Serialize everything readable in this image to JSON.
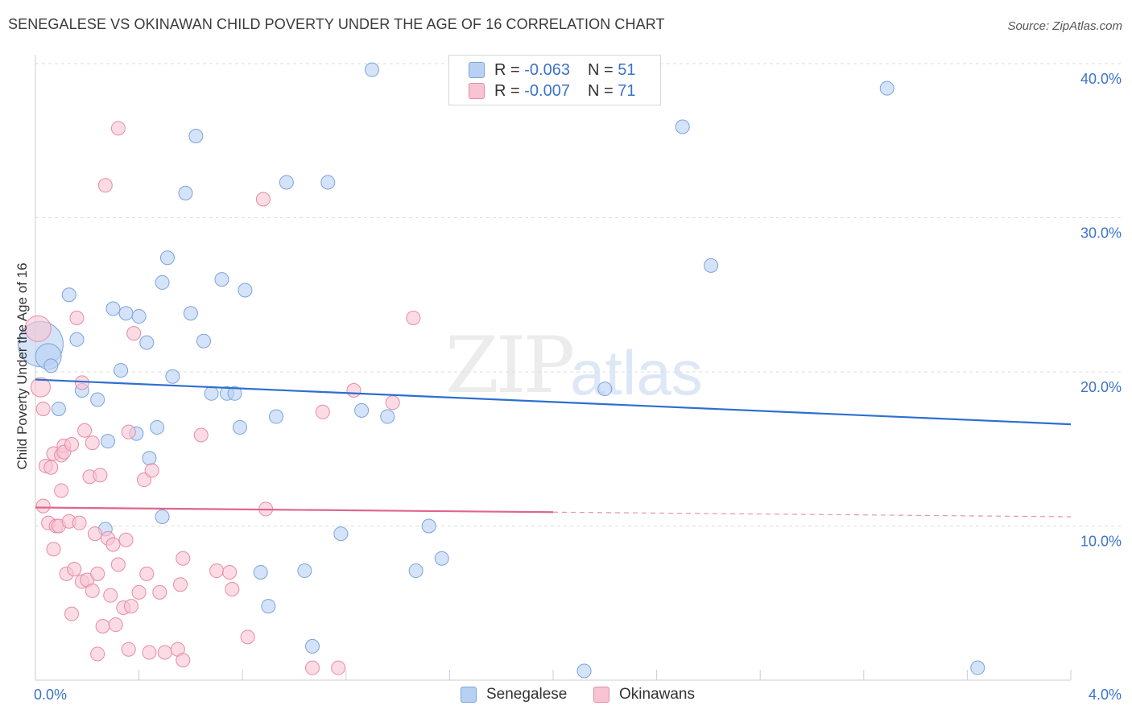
{
  "title": "SENEGALESE VS OKINAWAN CHILD POVERTY UNDER THE AGE OF 16 CORRELATION CHART",
  "source": "Source: ZipAtlas.com",
  "watermark": {
    "zip": "ZIP",
    "atlas": "atlas"
  },
  "legend_top": [
    {
      "r_label": "R =",
      "r_value": "-0.063",
      "n_label": "N =",
      "n_value": "51",
      "fill": "#b8d1f3",
      "stroke": "#7aa3df"
    },
    {
      "r_label": "R =",
      "r_value": "-0.007",
      "n_label": "N =",
      "n_value": "71",
      "fill": "#f8c4d3",
      "stroke": "#e88aa6"
    }
  ],
  "legend_bottom": [
    {
      "label": "Senegalese",
      "fill": "#b8d1f3",
      "stroke": "#7aa3df"
    },
    {
      "label": "Okinawans",
      "fill": "#f8c4d3",
      "stroke": "#e88aa6"
    }
  ],
  "chart_data": {
    "type": "scatter",
    "title": "SENEGALESE VS OKINAWAN CHILD POVERTY UNDER THE AGE OF 16 CORRELATION CHART",
    "xlabel": "",
    "ylabel": "Child Poverty Under the Age of 16",
    "xlim": [
      0,
      4
    ],
    "ylim": [
      0,
      40
    ],
    "x_tick_labels": [
      {
        "value": 0,
        "label": "0.0%"
      },
      {
        "value": 4,
        "label": "4.0%"
      }
    ],
    "y_tick_labels": [
      {
        "value": 10,
        "label": "10.0%"
      },
      {
        "value": 20,
        "label": "20.0%"
      },
      {
        "value": 30,
        "label": "30.0%"
      },
      {
        "value": 40,
        "label": "40.0%"
      }
    ],
    "grid": true,
    "series": [
      {
        "name": "Senegalese",
        "color": "#7aa3df",
        "fill": "#b8d1f3",
        "trend": {
          "x": [
            0,
            4
          ],
          "y": [
            19.5,
            16.6
          ],
          "color": "#2d6fcf",
          "dashed_from": null
        },
        "points": [
          {
            "x": 0.02,
            "y": 21.8,
            "s": 28
          },
          {
            "x": 0.05,
            "y": 21.0,
            "s": 16
          },
          {
            "x": 0.06,
            "y": 20.4,
            "s": 10
          },
          {
            "x": 0.09,
            "y": 17.6,
            "s": 10
          },
          {
            "x": 0.13,
            "y": 25.0,
            "s": 10
          },
          {
            "x": 0.16,
            "y": 22.1,
            "s": 10
          },
          {
            "x": 0.18,
            "y": 18.8,
            "s": 10
          },
          {
            "x": 0.24,
            "y": 18.2,
            "s": 10
          },
          {
            "x": 0.28,
            "y": 15.5,
            "s": 10
          },
          {
            "x": 0.3,
            "y": 24.1,
            "s": 10
          },
          {
            "x": 0.33,
            "y": 20.1,
            "s": 10
          },
          {
            "x": 0.35,
            "y": 23.8,
            "s": 10
          },
          {
            "x": 0.39,
            "y": 16.0,
            "s": 10
          },
          {
            "x": 0.4,
            "y": 23.6,
            "s": 10
          },
          {
            "x": 0.43,
            "y": 21.9,
            "s": 10
          },
          {
            "x": 0.47,
            "y": 16.4,
            "s": 10
          },
          {
            "x": 0.49,
            "y": 25.8,
            "s": 10
          },
          {
            "x": 0.51,
            "y": 27.4,
            "s": 10
          },
          {
            "x": 0.53,
            "y": 19.7,
            "s": 10
          },
          {
            "x": 0.58,
            "y": 31.6,
            "s": 10
          },
          {
            "x": 0.6,
            "y": 23.8,
            "s": 10
          },
          {
            "x": 0.62,
            "y": 35.3,
            "s": 10
          },
          {
            "x": 0.65,
            "y": 22.0,
            "s": 10
          },
          {
            "x": 0.68,
            "y": 18.6,
            "s": 10
          },
          {
            "x": 0.72,
            "y": 26.0,
            "s": 10
          },
          {
            "x": 0.74,
            "y": 18.6,
            "s": 10
          },
          {
            "x": 0.77,
            "y": 18.6,
            "s": 10
          },
          {
            "x": 0.79,
            "y": 16.4,
            "s": 10
          },
          {
            "x": 0.81,
            "y": 25.3,
            "s": 10
          },
          {
            "x": 0.87,
            "y": 7.0,
            "s": 10
          },
          {
            "x": 0.9,
            "y": 4.8,
            "s": 10
          },
          {
            "x": 0.93,
            "y": 17.1,
            "s": 10
          },
          {
            "x": 0.97,
            "y": 32.3,
            "s": 10
          },
          {
            "x": 1.04,
            "y": 7.1,
            "s": 10
          },
          {
            "x": 1.07,
            "y": 2.2,
            "s": 10
          },
          {
            "x": 1.13,
            "y": 32.3,
            "s": 10
          },
          {
            "x": 1.18,
            "y": 9.5,
            "s": 10
          },
          {
            "x": 1.26,
            "y": 17.5,
            "s": 10
          },
          {
            "x": 1.3,
            "y": 39.6,
            "s": 10
          },
          {
            "x": 1.36,
            "y": 17.1,
            "s": 10
          },
          {
            "x": 1.47,
            "y": 7.1,
            "s": 10
          },
          {
            "x": 1.52,
            "y": 10.0,
            "s": 10
          },
          {
            "x": 1.57,
            "y": 7.9,
            "s": 10
          },
          {
            "x": 0.27,
            "y": 9.8,
            "s": 10
          },
          {
            "x": 0.44,
            "y": 14.4,
            "s": 10
          },
          {
            "x": 0.49,
            "y": 10.6,
            "s": 10
          },
          {
            "x": 2.12,
            "y": 0.6,
            "s": 10
          },
          {
            "x": 2.2,
            "y": 18.9,
            "s": 10
          },
          {
            "x": 2.5,
            "y": 35.9,
            "s": 10
          },
          {
            "x": 2.61,
            "y": 26.9,
            "s": 10
          },
          {
            "x": 3.29,
            "y": 38.4,
            "s": 10
          },
          {
            "x": 3.64,
            "y": 0.8,
            "s": 10
          }
        ]
      },
      {
        "name": "Okinawans",
        "color": "#e88aa6",
        "fill": "#f8c4d3",
        "trend": {
          "x": [
            0,
            2.0,
            4
          ],
          "y": [
            11.2,
            10.9,
            10.6
          ],
          "color": "#e0648f",
          "dashed_from": 2.0
        },
        "points": [
          {
            "x": 0.01,
            "y": 22.8,
            "s": 16
          },
          {
            "x": 0.02,
            "y": 19.0,
            "s": 12
          },
          {
            "x": 0.03,
            "y": 17.6,
            "s": 10
          },
          {
            "x": 0.03,
            "y": 11.3,
            "s": 10
          },
          {
            "x": 0.04,
            "y": 13.9,
            "s": 10
          },
          {
            "x": 0.05,
            "y": 10.2,
            "s": 10
          },
          {
            "x": 0.06,
            "y": 13.8,
            "s": 10
          },
          {
            "x": 0.07,
            "y": 14.7,
            "s": 10
          },
          {
            "x": 0.07,
            "y": 8.5,
            "s": 10
          },
          {
            "x": 0.08,
            "y": 10.0,
            "s": 10
          },
          {
            "x": 0.09,
            "y": 10.0,
            "s": 10
          },
          {
            "x": 0.1,
            "y": 14.6,
            "s": 10
          },
          {
            "x": 0.1,
            "y": 12.3,
            "s": 10
          },
          {
            "x": 0.11,
            "y": 15.2,
            "s": 10
          },
          {
            "x": 0.11,
            "y": 14.8,
            "s": 10
          },
          {
            "x": 0.12,
            "y": 6.9,
            "s": 10
          },
          {
            "x": 0.13,
            "y": 10.3,
            "s": 10
          },
          {
            "x": 0.14,
            "y": 15.3,
            "s": 10
          },
          {
            "x": 0.14,
            "y": 4.3,
            "s": 10
          },
          {
            "x": 0.15,
            "y": 7.2,
            "s": 10
          },
          {
            "x": 0.16,
            "y": 23.5,
            "s": 10
          },
          {
            "x": 0.17,
            "y": 10.2,
            "s": 10
          },
          {
            "x": 0.18,
            "y": 6.4,
            "s": 10
          },
          {
            "x": 0.18,
            "y": 19.3,
            "s": 10
          },
          {
            "x": 0.19,
            "y": 16.2,
            "s": 10
          },
          {
            "x": 0.2,
            "y": 6.5,
            "s": 10
          },
          {
            "x": 0.21,
            "y": 13.2,
            "s": 10
          },
          {
            "x": 0.22,
            "y": 15.4,
            "s": 10
          },
          {
            "x": 0.22,
            "y": 5.8,
            "s": 10
          },
          {
            "x": 0.23,
            "y": 9.5,
            "s": 10
          },
          {
            "x": 0.24,
            "y": 6.9,
            "s": 10
          },
          {
            "x": 0.24,
            "y": 1.7,
            "s": 10
          },
          {
            "x": 0.25,
            "y": 13.3,
            "s": 10
          },
          {
            "x": 0.26,
            "y": 3.5,
            "s": 10
          },
          {
            "x": 0.27,
            "y": 32.1,
            "s": 10
          },
          {
            "x": 0.28,
            "y": 9.2,
            "s": 10
          },
          {
            "x": 0.29,
            "y": 5.5,
            "s": 10
          },
          {
            "x": 0.3,
            "y": 8.8,
            "s": 10
          },
          {
            "x": 0.31,
            "y": 3.6,
            "s": 10
          },
          {
            "x": 0.32,
            "y": 35.8,
            "s": 10
          },
          {
            "x": 0.32,
            "y": 7.5,
            "s": 10
          },
          {
            "x": 0.34,
            "y": 4.7,
            "s": 10
          },
          {
            "x": 0.35,
            "y": 9.1,
            "s": 10
          },
          {
            "x": 0.36,
            "y": 16.1,
            "s": 10
          },
          {
            "x": 0.36,
            "y": 2.0,
            "s": 10
          },
          {
            "x": 0.37,
            "y": 4.8,
            "s": 10
          },
          {
            "x": 0.38,
            "y": 22.5,
            "s": 10
          },
          {
            "x": 0.4,
            "y": 5.7,
            "s": 10
          },
          {
            "x": 0.42,
            "y": 13.0,
            "s": 10
          },
          {
            "x": 0.43,
            "y": 6.9,
            "s": 10
          },
          {
            "x": 0.44,
            "y": 1.8,
            "s": 10
          },
          {
            "x": 0.45,
            "y": 13.6,
            "s": 10
          },
          {
            "x": 0.48,
            "y": 5.7,
            "s": 10
          },
          {
            "x": 0.5,
            "y": 1.8,
            "s": 10
          },
          {
            "x": 0.55,
            "y": 2.0,
            "s": 10
          },
          {
            "x": 0.56,
            "y": 6.2,
            "s": 10
          },
          {
            "x": 0.57,
            "y": 1.3,
            "s": 10
          },
          {
            "x": 0.57,
            "y": 7.9,
            "s": 10
          },
          {
            "x": 0.64,
            "y": 15.9,
            "s": 10
          },
          {
            "x": 0.7,
            "y": 7.1,
            "s": 10
          },
          {
            "x": 0.75,
            "y": 7.0,
            "s": 10
          },
          {
            "x": 0.76,
            "y": 5.9,
            "s": 10
          },
          {
            "x": 0.82,
            "y": 2.8,
            "s": 10
          },
          {
            "x": 0.88,
            "y": 31.2,
            "s": 10
          },
          {
            "x": 0.89,
            "y": 11.1,
            "s": 10
          },
          {
            "x": 1.07,
            "y": 0.8,
            "s": 10
          },
          {
            "x": 1.11,
            "y": 17.4,
            "s": 10
          },
          {
            "x": 1.17,
            "y": 0.8,
            "s": 10
          },
          {
            "x": 1.23,
            "y": 18.8,
            "s": 10
          },
          {
            "x": 1.38,
            "y": 18.0,
            "s": 10
          },
          {
            "x": 1.46,
            "y": 23.5,
            "s": 10
          }
        ]
      }
    ]
  }
}
